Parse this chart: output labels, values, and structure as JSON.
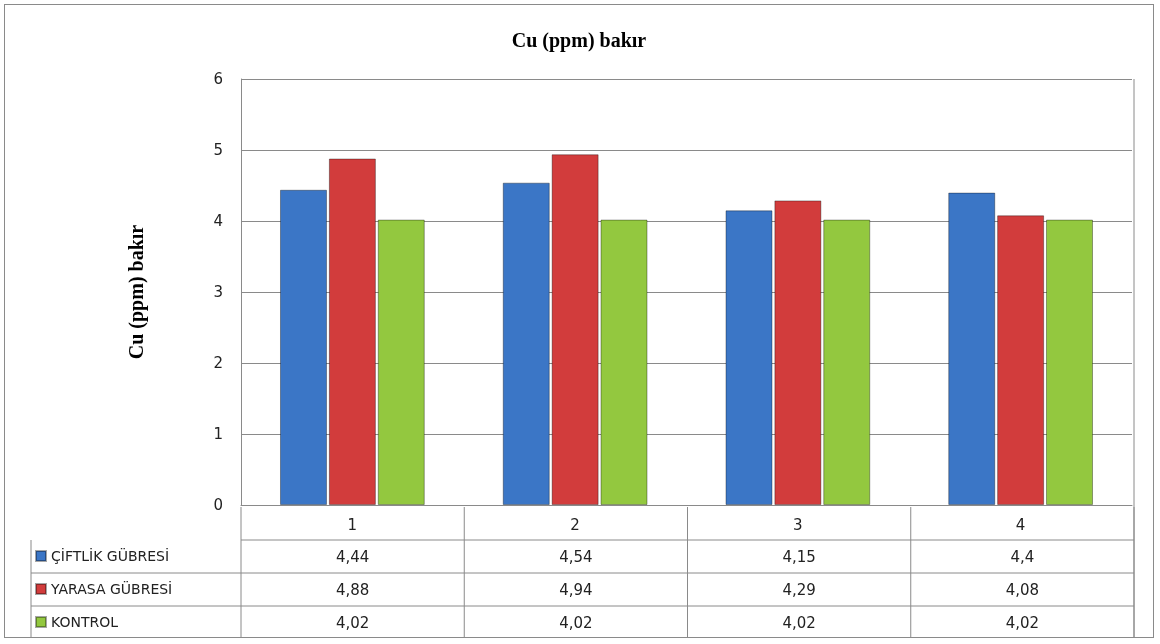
{
  "chart_data": {
    "type": "bar",
    "title": "Cu (ppm) bakır",
    "ylabel": "Cu (ppm) bakır",
    "categories": [
      "1",
      "2",
      "3",
      "4"
    ],
    "series": [
      {
        "name": "ÇİFTLİK GÜBRESİ",
        "color": "#3b76c6",
        "values": [
          4.44,
          4.54,
          4.15,
          4.4
        ],
        "value_labels": [
          "4,44",
          "4,54",
          "4,15",
          "4,4"
        ]
      },
      {
        "name": "YARASA GÜBRESİ",
        "color": "#d23c3c",
        "values": [
          4.88,
          4.94,
          4.29,
          4.08
        ],
        "value_labels": [
          "4,88",
          "4,94",
          "4,29",
          "4,08"
        ]
      },
      {
        "name": "KONTROL",
        "color": "#93c83f",
        "values": [
          4.02,
          4.02,
          4.02,
          4.02
        ],
        "value_labels": [
          "4,02",
          "4,02",
          "4,02",
          "4,02"
        ]
      }
    ],
    "ylim": [
      0,
      6
    ],
    "yticks": [
      0,
      1,
      2,
      3,
      4,
      5,
      6
    ],
    "grid": "y",
    "legend": "bottom left"
  }
}
